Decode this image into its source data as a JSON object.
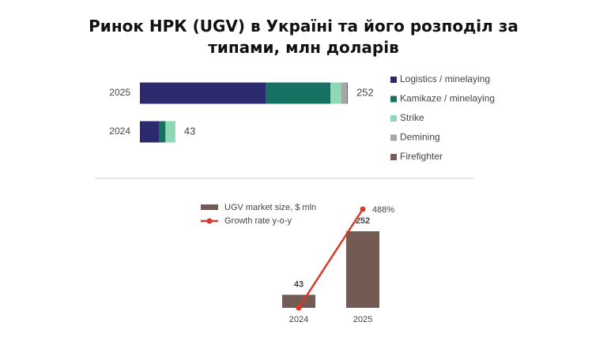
{
  "title": "Ринок НРК (UGV) в Україні та його розподіл за типами, млн доларів",
  "chart_data": [
    {
      "type": "bar",
      "orientation": "horizontal",
      "stacked": true,
      "categories": [
        "2025",
        "2024"
      ],
      "series": [
        {
          "name": "Logistics / minelaying",
          "color": "#2b2a6e",
          "values": [
            153,
            23
          ]
        },
        {
          "name": "Kamikaze / minelaying",
          "color": "#167163",
          "values": [
            78,
            8
          ]
        },
        {
          "name": "Strike",
          "color": "#8fd8b6",
          "values": [
            13,
            12
          ]
        },
        {
          "name": "Demining",
          "color": "#a6a6a6",
          "values": [
            7,
            0
          ]
        },
        {
          "name": "Firefighter",
          "color": "#7a5c55",
          "values": [
            1,
            0
          ]
        }
      ],
      "totals": [
        252,
        43
      ],
      "legend": "right"
    },
    {
      "type": "bar",
      "categories": [
        "2024",
        "2025"
      ],
      "series": [
        {
          "name": "UGV market size, $ mln",
          "type": "bar",
          "color": "#735a52",
          "values": [
            43,
            252
          ]
        },
        {
          "name": "Growth rate y-o-y",
          "type": "line",
          "axis": "y2",
          "color": "#d63a2b",
          "values": [
            0,
            488
          ],
          "value_labels": [
            null,
            "488%"
          ]
        }
      ],
      "legend": "top-left"
    }
  ]
}
